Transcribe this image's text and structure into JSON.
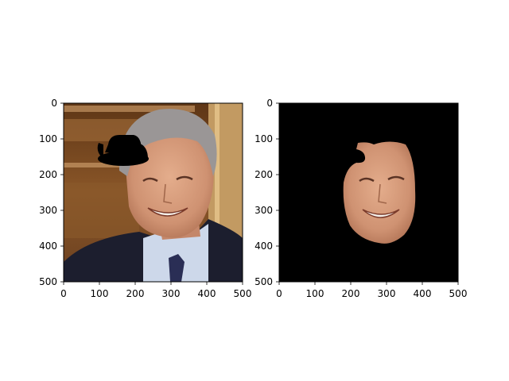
{
  "chart_data": [
    {
      "type": "image",
      "title": "",
      "xlabel": "",
      "ylabel": "",
      "xlim": [
        0,
        500
      ],
      "ylim": [
        500,
        0
      ],
      "x_ticks": [
        "0",
        "100",
        "200",
        "300",
        "400",
        "500"
      ],
      "y_ticks": [
        "0",
        "100",
        "200",
        "300",
        "400",
        "500"
      ],
      "content": "photo-with-hat"
    },
    {
      "type": "image",
      "title": "",
      "xlabel": "",
      "ylabel": "",
      "xlim": [
        0,
        500
      ],
      "ylim": [
        500,
        0
      ],
      "x_ticks": [
        "0",
        "100",
        "200",
        "300",
        "400",
        "500"
      ],
      "y_ticks": [
        "0",
        "100",
        "200",
        "300",
        "400",
        "500"
      ],
      "content": "face-mask"
    }
  ],
  "colors": {
    "suit": "#1c1e2e",
    "shirt": "#cdd8ea",
    "skin": "#d69a78",
    "hair": "#9a9696",
    "wood": "#7a4a22",
    "hat": "#000000",
    "mask_bg": "#000000"
  }
}
